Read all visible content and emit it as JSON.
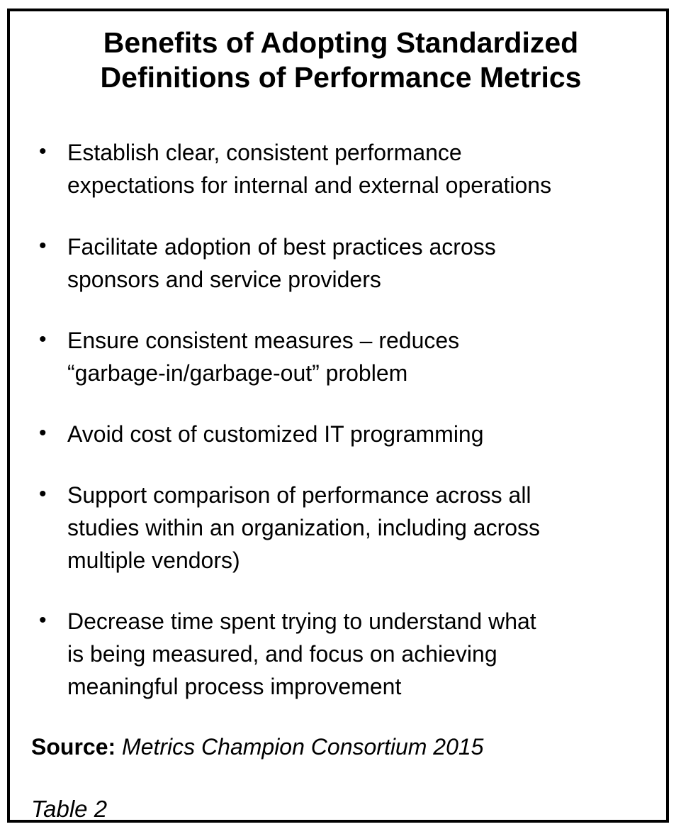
{
  "table": {
    "title": "Benefits of Adopting Standardized\nDefinitions of Performance Metrics",
    "bullet_glyph": "•",
    "bullets": [
      "Establish clear, consistent performance\nexpectations for internal and external operations",
      "Facilitate adoption of best practices across\nsponsors and service providers",
      "Ensure consistent measures – reduces\n“garbage-in/garbage-out” problem",
      "Avoid cost of customized IT programming",
      "Support comparison of performance across all\nstudies within an organization, including across\nmultiple vendors)",
      "Decrease time spent trying to understand what\nis being measured, and focus on achieving\nmeaningful process improvement"
    ],
    "source_label": "Source:",
    "source_text": "Metrics Champion Consortium 2015",
    "caption": "Table 2"
  },
  "colors": {
    "border": "#000000",
    "text": "#000000",
    "background": "#ffffff"
  }
}
